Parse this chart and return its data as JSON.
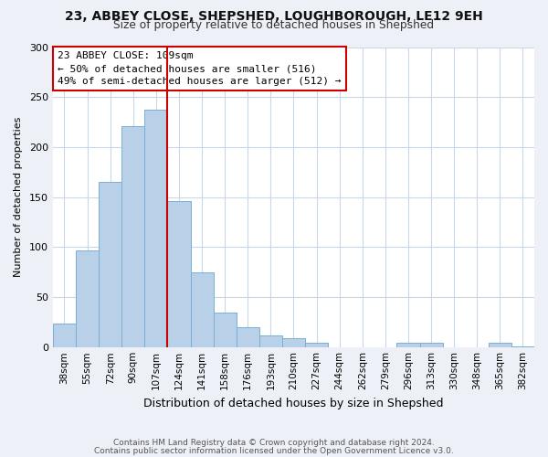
{
  "title1": "23, ABBEY CLOSE, SHEPSHED, LOUGHBOROUGH, LE12 9EH",
  "title2": "Size of property relative to detached houses in Shepshed",
  "xlabel": "Distribution of detached houses by size in Shepshed",
  "ylabel": "Number of detached properties",
  "categories": [
    "38sqm",
    "55sqm",
    "72sqm",
    "90sqm",
    "107sqm",
    "124sqm",
    "141sqm",
    "158sqm",
    "176sqm",
    "193sqm",
    "210sqm",
    "227sqm",
    "244sqm",
    "262sqm",
    "279sqm",
    "296sqm",
    "313sqm",
    "330sqm",
    "348sqm",
    "365sqm",
    "382sqm"
  ],
  "values": [
    24,
    97,
    165,
    221,
    237,
    146,
    75,
    35,
    20,
    12,
    9,
    4,
    0,
    0,
    0,
    4,
    4,
    0,
    0,
    4,
    1
  ],
  "bar_color": "#b8d0e8",
  "bar_edge_color": "#7aafd4",
  "vline_index": 4,
  "vline_color": "#cc0000",
  "annotation_title": "23 ABBEY CLOSE: 109sqm",
  "annotation_line1": "← 50% of detached houses are smaller (516)",
  "annotation_line2": "49% of semi-detached houses are larger (512) →",
  "annotation_box_color": "#ffffff",
  "annotation_box_edge": "#cc0000",
  "ylim": [
    0,
    300
  ],
  "yticks": [
    0,
    50,
    100,
    150,
    200,
    250,
    300
  ],
  "footnote1": "Contains HM Land Registry data © Crown copyright and database right 2024.",
  "footnote2": "Contains public sector information licensed under the Open Government Licence v3.0.",
  "bg_color": "#edf1f7",
  "plot_bg_color": "#ffffff",
  "grid_color": "#c8d8ea"
}
